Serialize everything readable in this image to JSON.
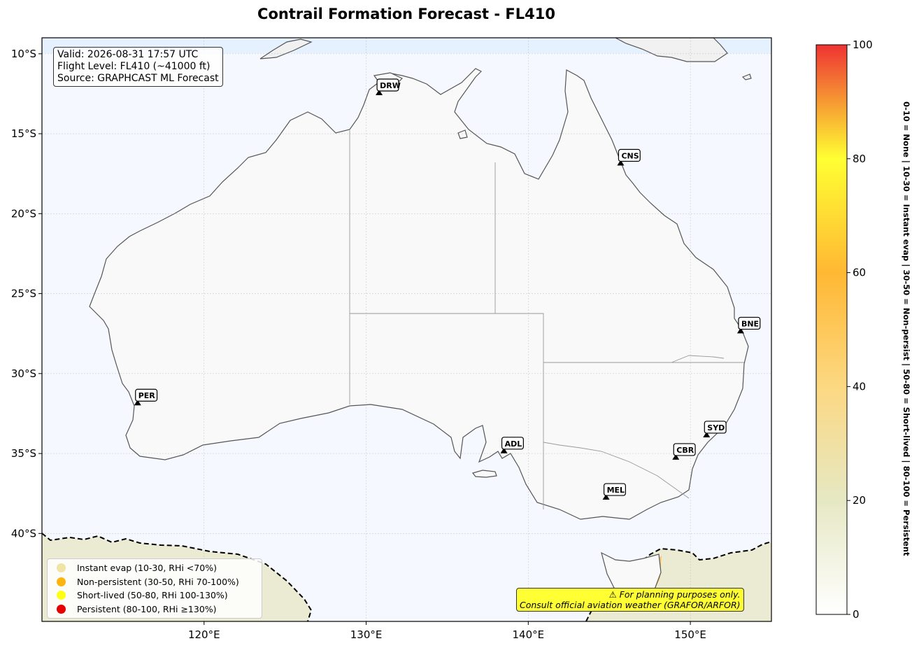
{
  "title": "Contrail Formation Forecast - FL410",
  "info": {
    "valid": "Valid: 2026-08-31 17:57 UTC",
    "flight_level": "Flight Level: FL410 (~41000 ft)",
    "source": "Source: GRAPHCAST ML Forecast"
  },
  "map": {
    "lon_range": [
      110,
      155
    ],
    "lat_range": [
      -45.5,
      -9
    ],
    "ocean_color": "#f5f9ff",
    "land_color": "#f9f9f9",
    "x_ticks": [
      "120°E",
      "130°E",
      "140°E",
      "150°E"
    ],
    "x_tick_values": [
      120,
      130,
      140,
      150
    ],
    "y_ticks": [
      "10°S",
      "15°S",
      "20°S",
      "25°S",
      "30°S",
      "35°S",
      "40°S"
    ],
    "y_tick_values": [
      -10,
      -15,
      -20,
      -25,
      -30,
      -35,
      -40
    ]
  },
  "airports": [
    {
      "code": "DRW",
      "lon": 130.8,
      "lat": -12.5
    },
    {
      "code": "CNS",
      "lon": 145.7,
      "lat": -16.9
    },
    {
      "code": "BNE",
      "lon": 153.1,
      "lat": -27.4
    },
    {
      "code": "PER",
      "lon": 115.9,
      "lat": -31.9
    },
    {
      "code": "ADL",
      "lon": 138.5,
      "lat": -34.9
    },
    {
      "code": "SYD",
      "lon": 151.0,
      "lat": -33.9
    },
    {
      "code": "CBR",
      "lon": 149.1,
      "lat": -35.3
    },
    {
      "code": "MEL",
      "lon": 144.8,
      "lat": -37.8
    }
  ],
  "legend": [
    {
      "label": "Instant evap (10-30, RHi <70%)",
      "color": "#f0e3a6"
    },
    {
      "label": "Non-persistent (30-50, RHi 70-100%)",
      "color": "#ffb30f"
    },
    {
      "label": "Short-lived (50-80, RHi 100-130%)",
      "color": "#ffff14"
    },
    {
      "label": "Persistent (80-100, RHi ≥130%)",
      "color": "#e60000"
    }
  ],
  "disclaimer": {
    "line1": "⚠ For planning purposes only.",
    "line2": "Consult official aviation weather (GRAFOR/ARFOR)"
  },
  "colorbar": {
    "range": [
      0,
      100
    ],
    "ticks": [
      "0",
      "20",
      "40",
      "60",
      "80",
      "100"
    ],
    "tick_values": [
      0,
      20,
      40,
      60,
      80,
      100
    ],
    "stops": [
      {
        "v": 0,
        "c": "#ffffff"
      },
      {
        "v": 20,
        "c": "#e6e8c4"
      },
      {
        "v": 40,
        "c": "#fcd882"
      },
      {
        "v": 60,
        "c": "#ffb833"
      },
      {
        "v": 80,
        "c": "#ffff33"
      },
      {
        "v": 100,
        "c": "#ee3333"
      }
    ],
    "side_label": "0-10 = None  |  10-30 = Instant evap  |  30-50 = Non-persist  |  50-80 = Short-lived  |  80-100 = Persistent"
  }
}
